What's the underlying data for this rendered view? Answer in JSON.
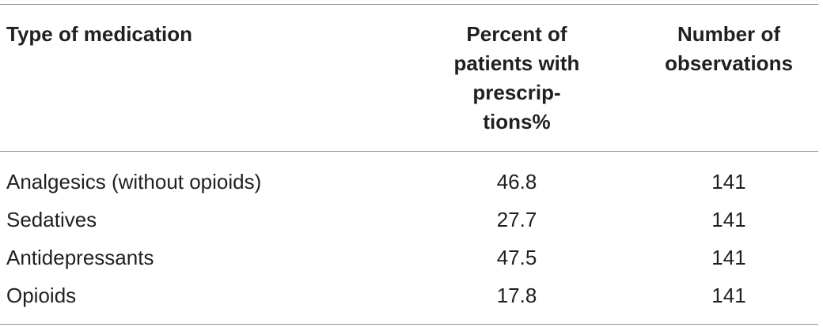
{
  "table": {
    "headers": {
      "type": "Type of medication",
      "percent_lines": [
        "Percent of",
        "patients with",
        "prescrip-",
        "tions%"
      ],
      "observations_lines": [
        "Number of",
        "observations"
      ]
    },
    "rows": [
      {
        "type": "Analgesics (without opioids)",
        "percent": "46.8",
        "observations": "141"
      },
      {
        "type": "Sedatives",
        "percent": "27.7",
        "observations": "141"
      },
      {
        "type": "Antidepressants",
        "percent": "47.5",
        "observations": "141"
      },
      {
        "type": "Opioids",
        "percent": "17.8",
        "observations": "141"
      }
    ]
  }
}
